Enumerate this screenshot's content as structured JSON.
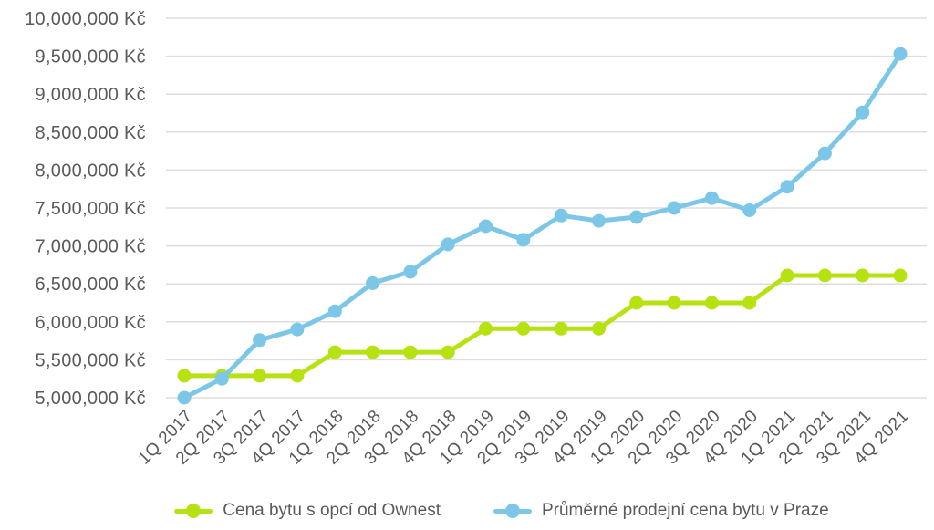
{
  "chart_data": {
    "type": "line",
    "title": "",
    "xlabel": "",
    "ylabel": "",
    "grid": true,
    "legend_position": "bottom",
    "ylim": [
      5000000,
      10000000
    ],
    "ytick_step": 500000,
    "y_ticks": [
      "5,000,000 Kč",
      "5,500,000 Kč",
      "6,000,000 Kč",
      "6,500,000 Kč",
      "7,000,000 Kč",
      "7,500,000 Kč",
      "8,000,000 Kč",
      "8,500,000 Kč",
      "9,000,000 Kč",
      "9,500,000 Kč",
      "10,000,000 Kč"
    ],
    "x": [
      "1Q 2017",
      "2Q 2017",
      "3Q 2017",
      "4Q 2017",
      "1Q 2018",
      "2Q 2018",
      "3Q 2018",
      "4Q 2018",
      "1Q 2019",
      "2Q 2019",
      "3Q 2019",
      "4Q 2019",
      "1Q 2020",
      "2Q 2020",
      "3Q 2020",
      "4Q 2020",
      "1Q 2021",
      "2Q 2021",
      "3Q 2021",
      "4Q 2021"
    ],
    "series": [
      {
        "name": "Cena bytu s opcí od Ownest",
        "color": "#B6E211",
        "values": [
          5290000,
          5290000,
          5290000,
          5290000,
          5600000,
          5600000,
          5600000,
          5600000,
          5910000,
          5910000,
          5910000,
          5910000,
          6250000,
          6250000,
          6250000,
          6250000,
          6610000,
          6610000,
          6610000,
          6610000
        ]
      },
      {
        "name": "Průměrné prodejní cena bytu v Praze",
        "color": "#7CC7E8",
        "values": [
          5000000,
          5250000,
          5760000,
          5900000,
          6140000,
          6510000,
          6660000,
          7020000,
          7260000,
          7080000,
          7400000,
          7330000,
          7380000,
          7500000,
          7630000,
          7470000,
          7780000,
          8220000,
          8760000,
          9530000
        ]
      }
    ]
  },
  "legend": {
    "items": [
      {
        "label": "Cena bytu s opcí od Ownest",
        "color": "#B6E211"
      },
      {
        "label": "Průměrné prodejní cena bytu v Praze",
        "color": "#7CC7E8"
      }
    ]
  },
  "styles": {
    "background": "#FFFFFF",
    "axis_text_color": "#5A5A5A",
    "gridline_color": "#DDDDDD",
    "ownest_green": "#B6E211",
    "praha_blue": "#7CC7E8"
  }
}
